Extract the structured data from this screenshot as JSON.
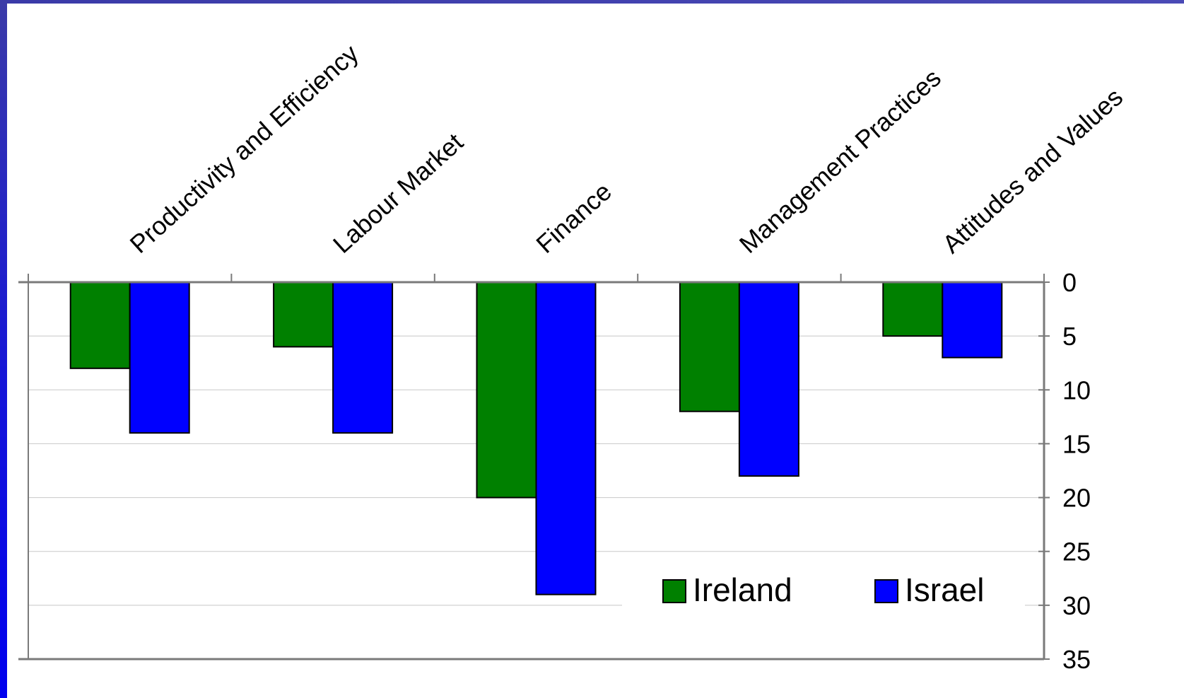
{
  "chart_data": {
    "type": "bar",
    "title": "",
    "xlabel": "",
    "ylabel": "",
    "categories": [
      "Productivity and Efficiency",
      "Labour Market",
      "Finance",
      "Management Practices",
      "Attitudes and Values"
    ],
    "series": [
      {
        "name": "Ireland",
        "values": [
          8,
          6,
          20,
          12,
          5
        ],
        "color": "#008000"
      },
      {
        "name": "Israel",
        "values": [
          14,
          14,
          29,
          18,
          7
        ],
        "color": "#0000ff"
      }
    ],
    "ylim": [
      0,
      35
    ],
    "y_axis_reversed": true,
    "y_axis_side": "right",
    "y_ticks": [
      "0",
      "5",
      "10",
      "15",
      "20",
      "25",
      "30",
      "35"
    ],
    "category_axis_position": "top",
    "category_label_rotation": "diagonal",
    "grid": true,
    "legend_placement": "bottom-right"
  },
  "frame": {
    "color": "#2424c8"
  }
}
